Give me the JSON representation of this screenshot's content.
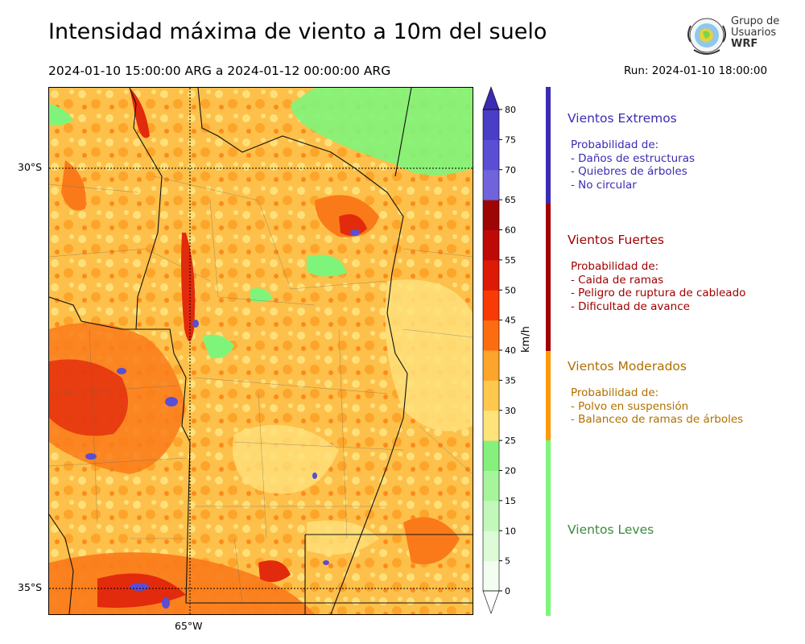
{
  "title": "Intensidad máxima de viento a 10m del suelo",
  "period": "2024-01-10 15:00:00 ARG  a  2024-01-12 00:00:00 ARG",
  "run": "Run: 2024-01-10 18:00:00",
  "logo": {
    "line1": "Grupo de",
    "line2": "Usuarios",
    "line3": "WRF"
  },
  "map": {
    "lat_labels": [
      "30°S",
      "35°S"
    ],
    "lon_labels": [
      "65°W"
    ],
    "colors": {
      "background_field": "#fdc04a",
      "calm": "#fee07a",
      "light_wind": "#7ef57a",
      "strong": "#fa7a1a",
      "very_strong": "#e22a0c",
      "extreme": "#5a4ed4"
    }
  },
  "colorbar": {
    "units": "km/h",
    "ticks": [
      "0",
      "5",
      "10",
      "15",
      "20",
      "25",
      "30",
      "35",
      "40",
      "45",
      "50",
      "55",
      "60",
      "65",
      "70",
      "75",
      "80"
    ],
    "colors": [
      "#f3fdf0",
      "#dcfbd6",
      "#c2f8ba",
      "#a6f59c",
      "#86f07d",
      "#fee27a",
      "#fec84e",
      "#fda52a",
      "#fd6c10",
      "#f83a06",
      "#dc1a06",
      "#be0a06",
      "#9e0606",
      "#7063dc",
      "#5a4ed4",
      "#4a3ec6",
      "#3a2cb2"
    ]
  },
  "categories": [
    {
      "title": "Vientos Extremos",
      "color": "#3a2cb2",
      "lines": [
        "Probabilidad de:",
        "- Daños de estructuras",
        "- Quiebres de árboles",
        "- No circular"
      ]
    },
    {
      "title": "Vientos Fuertes",
      "color": "#a00000",
      "lines": [
        "Probabilidad de:",
        "- Caida de ramas",
        "- Peligro de ruptura de cableado",
        "- Dificultad de avance"
      ]
    },
    {
      "title": "Vientos Moderados",
      "color": "#b07000",
      "lines": [
        "Probabilidad de:",
        "- Polvo en suspensión",
        "- Balanceo de ramas de árboles"
      ]
    },
    {
      "title": "Vientos Leves",
      "color": "#3a8a3a",
      "lines": []
    }
  ]
}
